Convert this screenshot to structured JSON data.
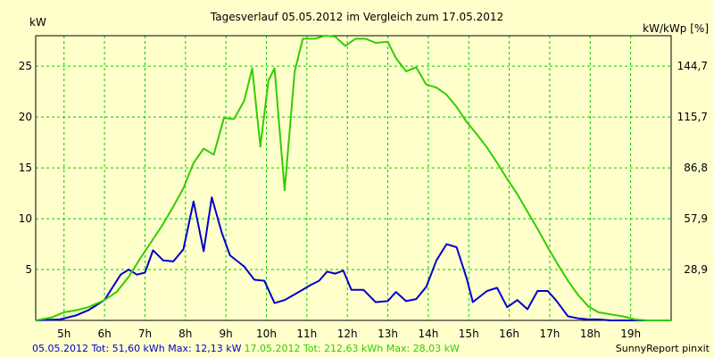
{
  "chart_data": {
    "type": "line",
    "title": "Tagesverlauf 05.05.2012 im Vergleich zum 17.05.2012",
    "ylabel_left": "kW",
    "ylabel_right": "kW/kWp [%]",
    "xlim": [
      4.3,
      20.0
    ],
    "ylim": [
      0,
      28
    ],
    "y_ticks_left": [
      5,
      10,
      15,
      20,
      25
    ],
    "y_ticks_right": [
      {
        "at": 5,
        "label": "28,9"
      },
      {
        "at": 10,
        "label": "57,9"
      },
      {
        "at": 15,
        "label": "86,8"
      },
      {
        "at": 20,
        "label": "115,7"
      },
      {
        "at": 25,
        "label": "144,7"
      }
    ],
    "x_ticks": [
      {
        "at": 5,
        "label": "5h"
      },
      {
        "at": 6,
        "label": "6h"
      },
      {
        "at": 7,
        "label": "7h"
      },
      {
        "at": 8,
        "label": "8h"
      },
      {
        "at": 9,
        "label": "9h"
      },
      {
        "at": 10,
        "label": "10h"
      },
      {
        "at": 11,
        "label": "11h"
      },
      {
        "at": 12,
        "label": "12h"
      },
      {
        "at": 13,
        "label": "13h"
      },
      {
        "at": 14,
        "label": "14h"
      },
      {
        "at": 15,
        "label": "15h"
      },
      {
        "at": 16,
        "label": "16h"
      },
      {
        "at": 17,
        "label": "17h"
      },
      {
        "at": 18,
        "label": "18h"
      },
      {
        "at": 19,
        "label": "19h"
      }
    ],
    "grid": true,
    "series": [
      {
        "name": "05.05.2012",
        "color": "#0000cc",
        "x": [
          4.3,
          4.9,
          5.3,
          5.6,
          6.0,
          6.4,
          6.6,
          6.8,
          7.0,
          7.2,
          7.45,
          7.7,
          7.95,
          8.2,
          8.45,
          8.65,
          8.9,
          9.1,
          9.45,
          9.7,
          9.95,
          10.2,
          10.45,
          10.8,
          11.1,
          11.3,
          11.5,
          11.7,
          11.9,
          12.1,
          12.4,
          12.7,
          13.0,
          13.2,
          13.45,
          13.7,
          13.95,
          14.2,
          14.45,
          14.7,
          14.95,
          15.1,
          15.45,
          15.7,
          15.95,
          16.2,
          16.45,
          16.7,
          16.95,
          17.15,
          17.45,
          17.7,
          17.95,
          18.2,
          18.5,
          19.0,
          19.5,
          20.0
        ],
        "y": [
          0.0,
          0.1,
          0.5,
          1.0,
          2.0,
          4.5,
          5.0,
          4.5,
          4.7,
          6.9,
          5.9,
          5.8,
          7.0,
          11.7,
          6.8,
          12.1,
          8.6,
          6.4,
          5.3,
          4.0,
          3.9,
          1.7,
          2.0,
          2.8,
          3.5,
          3.9,
          4.8,
          4.6,
          4.9,
          3.0,
          3.0,
          1.8,
          1.9,
          2.8,
          1.9,
          2.1,
          3.3,
          5.9,
          7.5,
          7.2,
          4.1,
          1.8,
          2.9,
          3.2,
          1.3,
          2.0,
          1.1,
          2.9,
          2.9,
          2.0,
          0.4,
          0.2,
          0.1,
          0.1,
          0.0,
          0.0,
          0.0,
          0.0
        ]
      },
      {
        "name": "17.05.2012",
        "color": "#33cc00",
        "x": [
          4.3,
          4.7,
          5.0,
          5.3,
          5.6,
          6.0,
          6.3,
          6.6,
          6.9,
          7.2,
          7.45,
          7.7,
          7.95,
          8.2,
          8.45,
          8.7,
          8.95,
          9.2,
          9.45,
          9.65,
          9.85,
          10.05,
          10.2,
          10.45,
          10.7,
          10.9,
          11.2,
          11.45,
          11.7,
          11.95,
          12.2,
          12.45,
          12.7,
          13.0,
          13.2,
          13.45,
          13.7,
          13.95,
          14.2,
          14.45,
          14.7,
          14.95,
          15.2,
          15.45,
          15.7,
          15.95,
          16.2,
          16.45,
          16.7,
          16.95,
          17.2,
          17.45,
          17.7,
          17.95,
          18.2,
          18.5,
          18.8,
          19.1,
          19.4,
          19.7,
          20.0
        ],
        "y": [
          0.0,
          0.3,
          0.8,
          1.0,
          1.3,
          2.0,
          2.8,
          4.3,
          6.2,
          8.0,
          9.5,
          11.2,
          13.0,
          15.5,
          16.9,
          16.3,
          19.9,
          19.8,
          21.6,
          24.8,
          17.1,
          23.6,
          24.8,
          12.8,
          24.5,
          27.7,
          27.7,
          28.0,
          27.9,
          27.0,
          27.7,
          27.7,
          27.3,
          27.4,
          25.8,
          24.5,
          24.9,
          23.2,
          22.9,
          22.2,
          21.0,
          19.5,
          18.3,
          17.0,
          15.5,
          13.9,
          12.4,
          10.7,
          9.0,
          7.2,
          5.5,
          3.9,
          2.5,
          1.4,
          0.8,
          0.6,
          0.4,
          0.1,
          0.0,
          0.0,
          0.0
        ]
      }
    ]
  },
  "footer": {
    "series1_text": "05.05.2012 Tot: 51,60 kWh Max: 12,13 kW",
    "series2_text": "17.05.2012 Tot: 212,63 kWh Max: 28,03 kW",
    "credit": "SunnyReport pinxit",
    "series1_color": "#0000cc",
    "series2_color": "#33cc00"
  }
}
